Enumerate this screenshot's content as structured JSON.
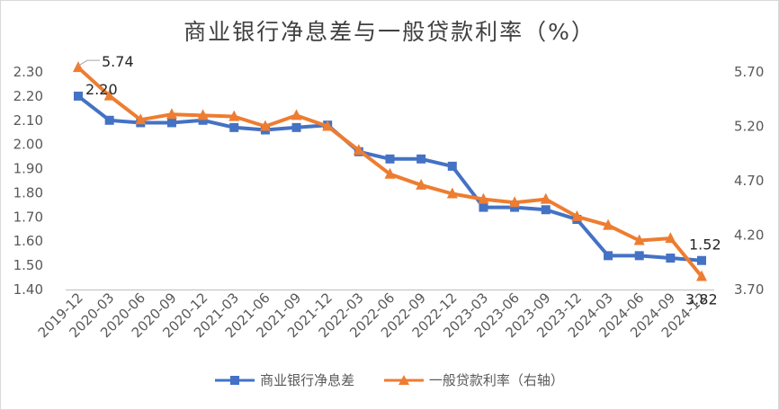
{
  "chart_data": {
    "type": "line",
    "title": "商业银行净息差与一般贷款利率（%）",
    "categories": [
      "2019-12",
      "2020-03",
      "2020-06",
      "2020-09",
      "2020-12",
      "2021-03",
      "2021-06",
      "2021-09",
      "2021-12",
      "2022-03",
      "2022-06",
      "2022-09",
      "2022-12",
      "2023-03",
      "2023-06",
      "2023-09",
      "2023-12",
      "2024-03",
      "2024-06",
      "2024-09",
      "2024-12"
    ],
    "series": [
      {
        "name": "商业银行净息差",
        "axis": "left",
        "color": "#4472C4",
        "marker": "square",
        "values": [
          2.2,
          2.1,
          2.09,
          2.09,
          2.1,
          2.07,
          2.06,
          2.07,
          2.08,
          1.97,
          1.94,
          1.94,
          1.91,
          1.74,
          1.74,
          1.73,
          1.69,
          1.54,
          1.54,
          1.53,
          1.52
        ]
      },
      {
        "name": "一般贷款利率（右轴）",
        "axis": "right",
        "color": "#ED7D31",
        "marker": "triangle",
        "values": [
          5.74,
          5.48,
          5.26,
          5.31,
          5.3,
          5.29,
          5.2,
          5.3,
          5.2,
          4.98,
          4.76,
          4.66,
          4.58,
          4.53,
          4.5,
          4.53,
          4.37,
          4.29,
          4.15,
          4.17,
          3.82
        ]
      }
    ],
    "y_left": {
      "min": 1.4,
      "max": 2.3,
      "ticks": [
        "2.30",
        "2.20",
        "2.10",
        "2.00",
        "1.90",
        "1.80",
        "1.70",
        "1.60",
        "1.50",
        "1.40"
      ]
    },
    "y_right": {
      "min": 3.7,
      "max": 5.7,
      "ticks": [
        "5.70",
        "5.20",
        "4.70",
        "4.20",
        "3.70"
      ]
    },
    "data_labels": [
      {
        "series": 0,
        "index": 0,
        "text": "2.20"
      },
      {
        "series": 1,
        "index": 0,
        "text": "5.74"
      },
      {
        "series": 0,
        "index": 20,
        "text": "1.52"
      },
      {
        "series": 1,
        "index": 20,
        "text": "3.82"
      }
    ],
    "grid": false,
    "legend_position": "bottom"
  }
}
